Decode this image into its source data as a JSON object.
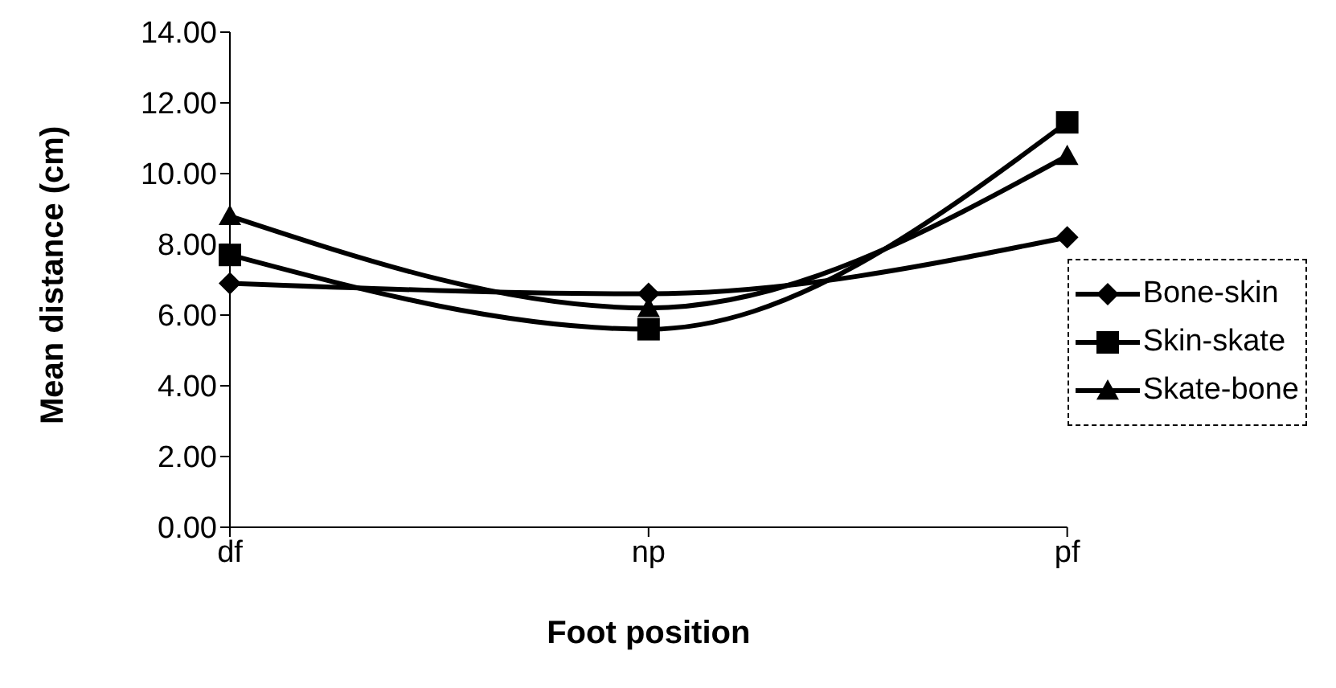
{
  "chart_data": {
    "type": "line",
    "xlabel": "Foot position",
    "ylabel": "Mean distance (cm)",
    "categories": [
      "df",
      "np",
      "pf"
    ],
    "series": [
      {
        "name": "Bone-skin",
        "color": "#000000",
        "marker": "diamond",
        "values": [
          6.9,
          6.6,
          8.2
        ]
      },
      {
        "name": "Skin-skate",
        "color": "#000000",
        "marker": "square",
        "values": [
          7.7,
          5.6,
          11.45
        ]
      },
      {
        "name": "Skate-bone",
        "color": "#000000",
        "marker": "triangle",
        "values": [
          8.8,
          6.2,
          10.5
        ]
      }
    ],
    "ylim": [
      0,
      14
    ],
    "yticks": [
      {
        "value": 0,
        "label": "0.00"
      },
      {
        "value": 2,
        "label": "2.00"
      },
      {
        "value": 4,
        "label": "4.00"
      },
      {
        "value": 6,
        "label": "6.00"
      },
      {
        "value": 8,
        "label": "8.00"
      },
      {
        "value": 10,
        "label": "10.00"
      },
      {
        "value": 12,
        "label": "12.00"
      },
      {
        "value": 14,
        "label": "14.00"
      }
    ],
    "grid": false,
    "legend": "right",
    "line_style": "solid"
  }
}
